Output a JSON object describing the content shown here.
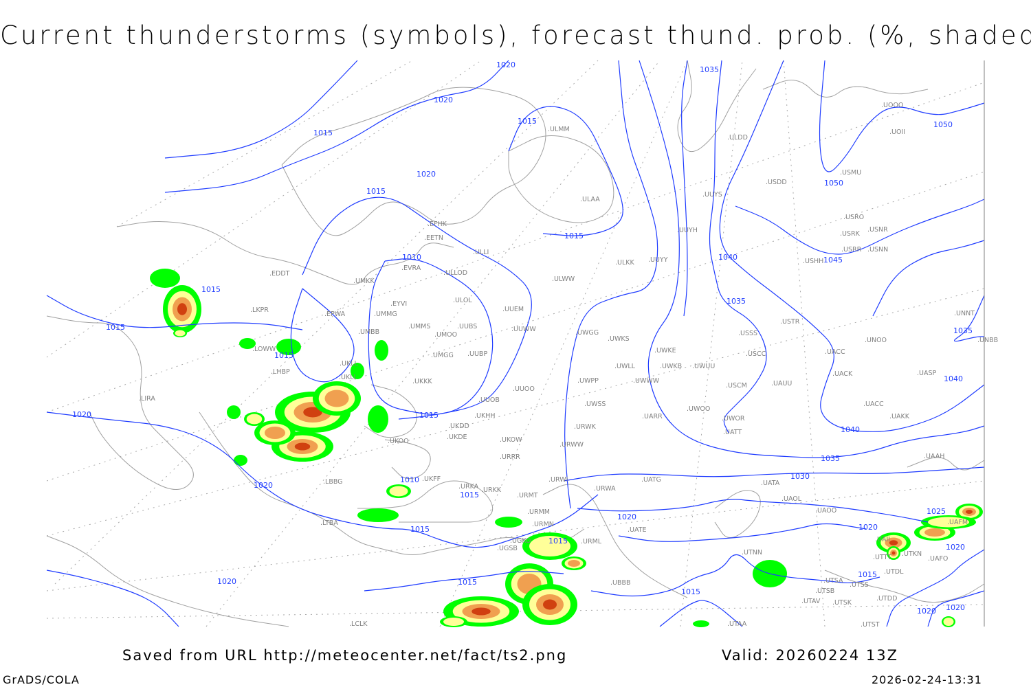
{
  "title": "Current thunderstorms (symbols), forecast thund. prob. (%, shaded)",
  "footer": {
    "saved_from": "Saved from URL http://meteocenter.net/fact/ts2.png",
    "valid": "Valid: 20260224 13Z",
    "software": "GrADS/COLA",
    "timestamp": "2026-02-24-13:31"
  },
  "colors": {
    "isobar": "#1f3cff",
    "coastline": "#a0a0a0",
    "station_label": "#808080",
    "prob_low": "#00ff00",
    "prob_mid": "#ffff99",
    "prob_high": "#f0a050",
    "prob_max": "#d04010"
  },
  "isobar_labels": [
    "1015",
    "1020",
    "1015",
    "1015",
    "1020",
    "1015",
    "1015",
    "1010",
    "1020",
    "1020",
    "1015",
    "1015",
    "1010",
    "1015",
    "1015",
    "1015",
    "1015",
    "1020",
    "1015",
    "1035",
    "1050",
    "1050",
    "1045",
    "1040",
    "1035",
    "1035",
    "1040",
    "1040",
    "1035",
    "1030",
    "1020",
    "1025",
    "1020",
    "1020",
    "1015",
    "1020",
    "1020",
    "1015",
    "1020"
  ],
  "stations": [
    "EDDT",
    "LKPR",
    "LOWW",
    "LHBP",
    "LIRA",
    "LBBG",
    "LTBA",
    "EPWA",
    "UMKK",
    "EVRA",
    "EYVI",
    "UMMG",
    "UMBB",
    "UKLL",
    "UKLI",
    "UMMS",
    "UMOO",
    "UUBS",
    "UMGG",
    "UUBP",
    "UKKK",
    "UUOB",
    "UKDD",
    "UKHH",
    "UKDE",
    "UKOO",
    "UKFF",
    "URKA",
    "URKK",
    "UKOW",
    "URRR",
    "UUOO",
    "UUWW",
    "UUEM",
    "ULOL",
    "ULLOD",
    "ULLI",
    "EETN",
    "EFHK",
    "ULMM",
    "ULAA",
    "ULWW",
    "ULKK",
    "UUYY",
    "UUYH",
    "UUYS",
    "ULDD",
    "USDD",
    "USMU",
    "UOII",
    "UOOO",
    "USRO",
    "USRK",
    "USNR",
    "USRR",
    "USNN",
    "USHH",
    "USTR",
    "USSS",
    "USCC",
    "USCM",
    "UAUU",
    "UACC",
    "UACK",
    "UASP",
    "UNOO",
    "UNNT",
    "UNBB",
    "UACC",
    "UAKK",
    "UAAH",
    "UATT",
    "UWOR",
    "UWOO",
    "UARR",
    "UWUU",
    "UWKE",
    "UWKB",
    "UWKS",
    "UWGG",
    "UWLL",
    "UWWW",
    "UWPP",
    "UWSS",
    "URWK",
    "URWW",
    "URWI",
    "UATG",
    "URWA",
    "URMT",
    "URMM",
    "URMN",
    "UGKO",
    "URML",
    "UATE",
    "UATA",
    "UAOL",
    "UAOO",
    "UTNN",
    "UTSA",
    "UTSB",
    "UTAV",
    "UTSK",
    "UTTT",
    "UTKN",
    "UAFO",
    "UTDL",
    "UTDD",
    "UTST",
    "UTAA",
    "UBBB",
    "UGSB",
    "LCLK",
    "UAII",
    "UAFM",
    "UTSS"
  ]
}
